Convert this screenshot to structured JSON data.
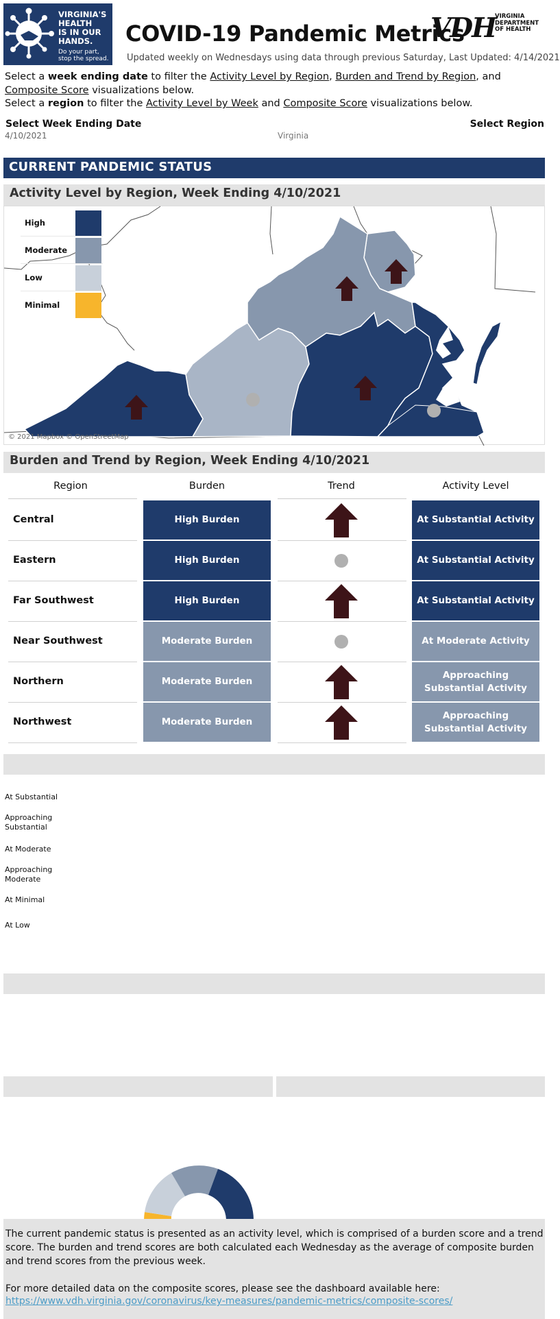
{
  "header": {
    "logo_text": [
      "VIRGINIA'S",
      "HEALTH",
      "IS IN OUR",
      "HANDS."
    ],
    "logo_subtext": [
      "Do your part,",
      "stop the spread."
    ],
    "title": "COVID-19 Pandemic Metrics",
    "vdh_logo": "VDH",
    "vdh_subtext": [
      "VIRGINIA",
      "DEPARTMENT",
      "OF HEALTH"
    ],
    "updated": "Updated weekly on Wednesdays using data through previous Saturday, Last Updated: 4/14/2021"
  },
  "instructions": {
    "line1_a": "Select a ",
    "line1_b": "week ending date",
    "line1_c": " to filter the ",
    "link_activity_region": "Activity Level by Region",
    "sep_comma": ", ",
    "link_burden_trend": "Burden and Trend by Region",
    "sep_and": ", and ",
    "link_composite": "Composite Score",
    "line1_d": " visualizations below.",
    "line2_a": "Select a ",
    "line2_b": "region",
    "line2_c": " to filter the ",
    "link_activity_week": "Activity Level by Week",
    "line2_and": " and ",
    "link_composite2": "Composite Score",
    "line2_d": " visualizations below."
  },
  "filters": {
    "week_label": "Select Week Ending Date",
    "week_value": "4/10/2021",
    "region_label": "Select Region",
    "region_value": "Virginia"
  },
  "status_banner": "CURRENT PANDEMIC STATUS",
  "map_section": {
    "title": "Activity Level by Region, Week Ending 4/10/2021",
    "legend": [
      {
        "label": "High",
        "color": "#1f3b6b"
      },
      {
        "label": "Moderate",
        "color": "#8797ad"
      },
      {
        "label": "Low",
        "color": "#c8d0da"
      },
      {
        "label": "Minimal",
        "color": "#f7b52c"
      }
    ],
    "attribution": "© 2021 Mapbox © OpenStreetMap"
  },
  "burden_section": {
    "title": "Burden and Trend by Region, Week Ending 4/10/2021",
    "columns": [
      "Region",
      "Burden",
      "Trend",
      "Activity Level"
    ],
    "rows": [
      {
        "region": "Central",
        "burden": "High Burden",
        "burden_level": "high",
        "trend": "up",
        "activity": "At Substantial Activity",
        "activity_level": "high"
      },
      {
        "region": "Eastern",
        "burden": "High Burden",
        "burden_level": "high",
        "trend": "flat",
        "activity": "At Substantial Activity",
        "activity_level": "high"
      },
      {
        "region": "Far Southwest",
        "burden": "High Burden",
        "burden_level": "high",
        "trend": "up",
        "activity": "At Substantial Activity",
        "activity_level": "high"
      },
      {
        "region": "Near Southwest",
        "burden": "Moderate Burden",
        "burden_level": "mod",
        "trend": "flat",
        "activity": "At Moderate Activity",
        "activity_level": "mod"
      },
      {
        "region": "Northern",
        "burden": "Moderate Burden",
        "burden_level": "mod",
        "trend": "up",
        "activity": "Approaching Substantial Activity",
        "activity_level": "mod"
      },
      {
        "region": "Northwest",
        "burden": "Moderate Burden",
        "burden_level": "mod",
        "trend": "up",
        "activity": "Approaching Substantial Activity",
        "activity_level": "mod"
      }
    ],
    "colors": {
      "trend_up": "#3d1418",
      "trend_flat": "#b0b0b0"
    }
  },
  "activity_week_labels": [
    "At Substantial",
    "Approaching Substantial",
    "At Moderate",
    "Approaching Moderate",
    "At Minimal",
    "At Low"
  ],
  "footer": {
    "paragraph1": "The current pandemic status is presented as an activity level, which is comprised of a burden score and a trend score. The burden and trend scores are both calculated each Wednesday as the average of composite burden and trend scores from the previous week.",
    "paragraph2": "For more detailed data on the composite scores, please see the dashboard available here:",
    "link": "https://www.vdh.virginia.gov/coronavirus/key-measures/pandemic-metrics/composite-scores/"
  }
}
